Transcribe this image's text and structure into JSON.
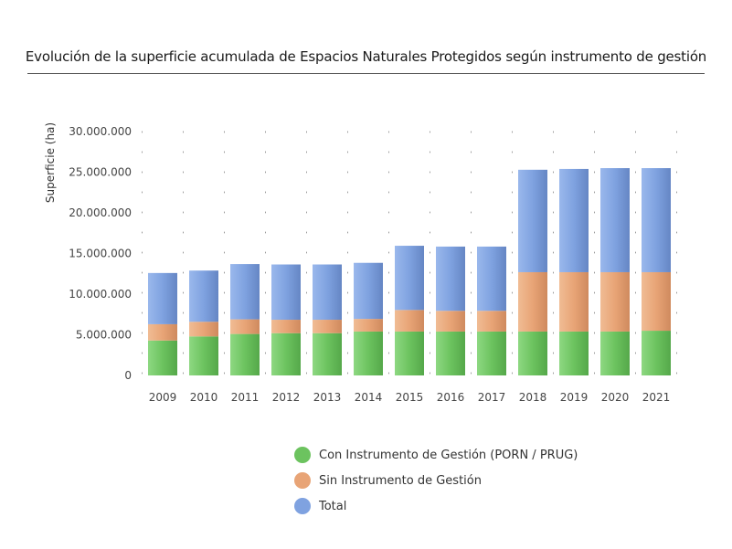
{
  "chart_data": {
    "type": "bar",
    "stacked": true,
    "title": "Evolución de la superficie acumulada de Espacios Naturales Protegidos según instrumento de gestión",
    "xlabel": "",
    "ylabel": "Superficie (ha)",
    "ylim": [
      0,
      30000000
    ],
    "yticks": [
      0,
      5000000,
      10000000,
      15000000,
      20000000,
      25000000,
      30000000
    ],
    "ytick_labels": [
      "0",
      "5.000.000",
      "10.000.000",
      "15.000.000",
      "20.000.000",
      "25.000.000",
      "30.000.000"
    ],
    "grid": true,
    "legend_position": "bottom",
    "categories": [
      "2009",
      "2010",
      "2011",
      "2012",
      "2013",
      "2014",
      "2015",
      "2016",
      "2017",
      "2018",
      "2019",
      "2020",
      "2021"
    ],
    "series": [
      {
        "name": "Con Instrumento de Gestión (PORN / PRUG)",
        "color": "#6cc35f",
        "values": [
          4300000,
          4800000,
          5100000,
          5200000,
          5200000,
          5400000,
          5400000,
          5400000,
          5400000,
          5400000,
          5400000,
          5400000,
          5500000
        ]
      },
      {
        "name": "Sin Instrumento de Gestión",
        "color": "#e8a476",
        "values": [
          2000000,
          1800000,
          1800000,
          1650000,
          1650000,
          1550000,
          2650000,
          2550000,
          2550000,
          7300000,
          7300000,
          7300000,
          7200000
        ]
      },
      {
        "name": "Total",
        "color": "#7fa2e0",
        "values": [
          6300000,
          6300000,
          6800000,
          6800000,
          6800000,
          6900000,
          7900000,
          7900000,
          7900000,
          12600000,
          12700000,
          12800000,
          12800000
        ]
      }
    ]
  }
}
